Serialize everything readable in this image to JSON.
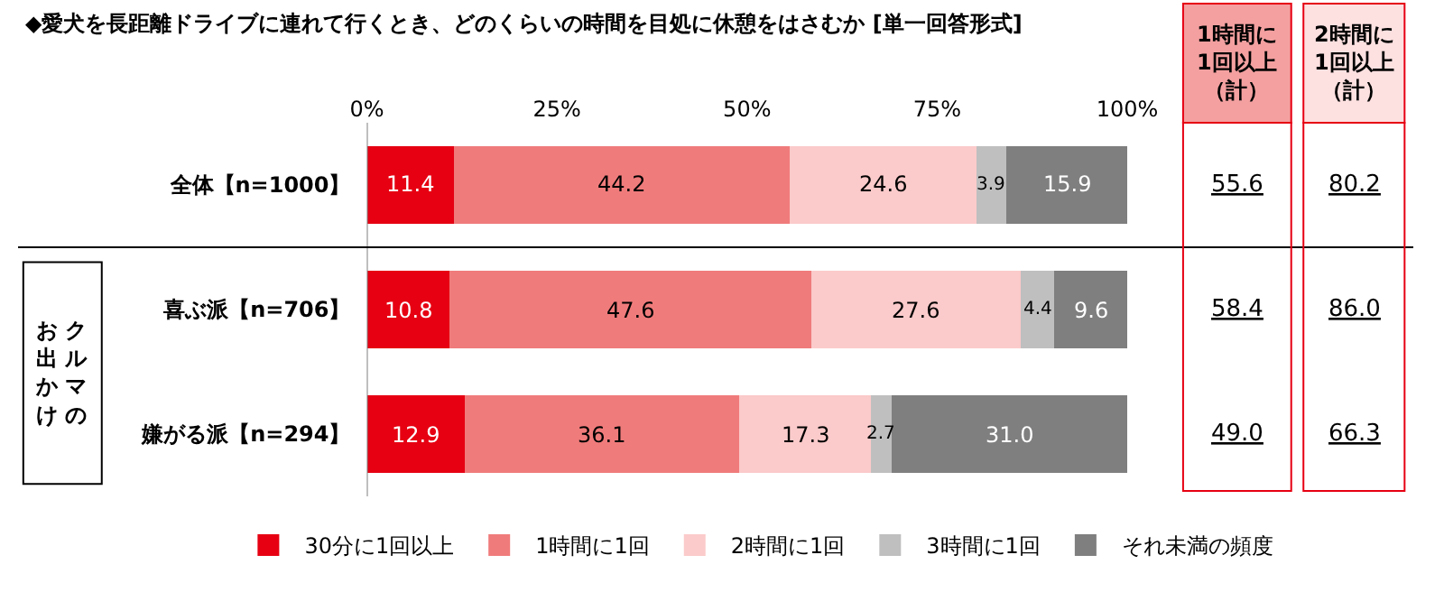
{
  "chart_data": {
    "type": "bar",
    "orientation": "horizontal",
    "stacked": true,
    "title": "◆愛犬を長距離ドライブに連れて行くとき、どのくらいの時間を目処に休憩をはさむか [単一回答形式]",
    "categories": [
      "全体【n=1000】",
      "喜ぶ派【n=706】",
      "嫌がる派【n=294】"
    ],
    "series": [
      {
        "name": "30分に1回以上",
        "color": "#e60012",
        "values": [
          11.4,
          10.8,
          12.9
        ],
        "value_labels": [
          "11.4",
          "10.8",
          "12.9"
        ]
      },
      {
        "name": "1時間に1回",
        "color": "#f07b7b",
        "values": [
          44.2,
          47.6,
          36.1
        ],
        "value_labels": [
          "44.2",
          "47.6",
          "36.1"
        ]
      },
      {
        "name": "2時間に1回",
        "color": "#fbcaca",
        "values": [
          24.6,
          27.6,
          17.3
        ],
        "value_labels": [
          "24.6",
          "27.6",
          "17.3"
        ]
      },
      {
        "name": "3時間に1回",
        "color": "#bfbfbf",
        "values": [
          3.9,
          4.4,
          2.7
        ],
        "value_labels": [
          "3.9",
          "4.4",
          "2.7"
        ]
      },
      {
        "name": "それ未満の頻度",
        "color": "#7f7f7f",
        "values": [
          15.9,
          9.6,
          31.0
        ],
        "value_labels": [
          "15.9",
          "9.6",
          "31.0"
        ]
      }
    ],
    "xlim": [
      0,
      100
    ],
    "xticks": [
      {
        "value": 0,
        "label": "0%"
      },
      {
        "value": 25,
        "label": "25%"
      },
      {
        "value": 50,
        "label": "50%"
      },
      {
        "value": 75,
        "label": "75%"
      },
      {
        "value": 100,
        "label": "100%"
      }
    ],
    "legend": "bottom",
    "annotations": [
      "クルマの",
      "お出かけ",
      "1時間に1回以上（計）",
      "2時間に1回以上（計）",
      "55.6",
      "58.4",
      "49.0",
      "80.2",
      "86.0",
      "66.3"
    ]
  }
}
